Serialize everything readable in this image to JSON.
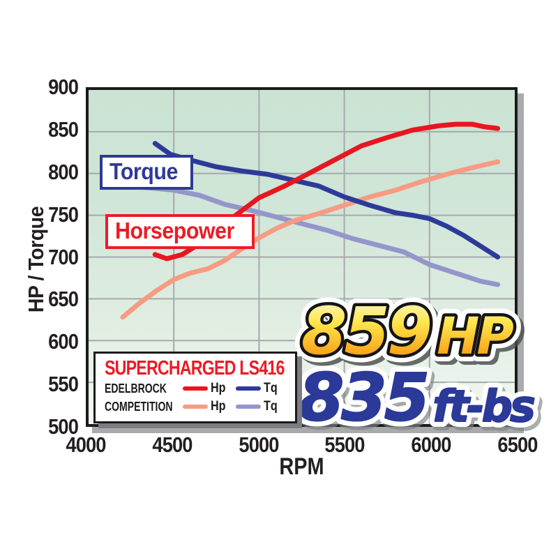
{
  "axes": {
    "y_label": "HP / Torque",
    "x_label": "RPM",
    "y_ticks": [
      900,
      850,
      800,
      750,
      700,
      650,
      600,
      550,
      500
    ],
    "x_ticks": [
      4000,
      4500,
      5000,
      5500,
      6000,
      6500
    ]
  },
  "plot_labels": {
    "torque": "Torque",
    "horsepower": "Horsepower"
  },
  "legend": {
    "title": "SUPERCHARGED LS416",
    "rows": [
      {
        "name": "EDELBROCK",
        "entries": [
          {
            "label": "Hp",
            "color": "#e8161f"
          },
          {
            "label": "Tq",
            "color": "#2e3a99"
          }
        ]
      },
      {
        "name": "COMPETITION",
        "entries": [
          {
            "label": "Hp",
            "color": "#f79b83"
          },
          {
            "label": "Tq",
            "color": "#9496cb"
          }
        ]
      }
    ]
  },
  "colors": {
    "edelbrock_hp": "#e8161f",
    "edelbrock_tq": "#2e3a99",
    "competition_hp": "#f79b83",
    "competition_tq": "#9496cb",
    "grid": "#a6a9ab",
    "plot_border": "#1b1b1b",
    "plot_bg_top": "#cbe3d4",
    "plot_bg_bottom": "#f3f8f3",
    "gold_top": "#fdf9e0",
    "gold_mid": "#ffe64c",
    "gold_bottom": "#f68d1e",
    "callout_blue": "#2b3a98",
    "label_red": "#ed1b24",
    "label_blue": "#2e3a96",
    "tick_text": "#231f20"
  },
  "chart_data": {
    "type": "line",
    "title": "SUPERCHARGED LS416",
    "xlabel": "RPM",
    "ylabel": "HP / Torque",
    "xlim": [
      4000,
      6500
    ],
    "ylim": [
      500,
      900
    ],
    "x_tick_step": 500,
    "y_tick_step": 50,
    "grid": true,
    "legend_position": "bottom-left",
    "series": [
      {
        "id": "edelbrock-hp",
        "name": "Edelbrock Hp",
        "color": "#e8161f",
        "x": [
          4390,
          4460,
          4550,
          4700,
          4850,
          5000,
          5150,
          5300,
          5450,
          5600,
          5750,
          5900,
          6050,
          6150,
          6250,
          6320,
          6400
        ],
        "y": [
          703,
          698,
          703,
          722,
          748,
          771,
          785,
          801,
          817,
          833,
          843,
          852,
          857,
          859,
          859,
          856,
          854
        ]
      },
      {
        "id": "edelbrock-tq",
        "name": "Edelbrock Tq",
        "color": "#2e3a99",
        "x": [
          4390,
          4480,
          4600,
          4750,
          4900,
          5050,
          5200,
          5350,
          5500,
          5650,
          5800,
          5900,
          6000,
          6100,
          6200,
          6300,
          6400
        ],
        "y": [
          836,
          823,
          816,
          808,
          803,
          799,
          792,
          785,
          772,
          762,
          753,
          750,
          746,
          737,
          726,
          713,
          700
        ]
      },
      {
        "id": "competition-hp",
        "name": "Competition Hp",
        "color": "#f79b83",
        "x": [
          4200,
          4300,
          4400,
          4500,
          4600,
          4700,
          4800,
          4900,
          5000,
          5100,
          5200,
          5350,
          5500,
          5650,
          5800,
          5950,
          6100,
          6250,
          6400
        ],
        "y": [
          628,
          645,
          660,
          673,
          681,
          686,
          696,
          710,
          723,
          734,
          743,
          752,
          762,
          772,
          780,
          790,
          799,
          807,
          814
        ]
      },
      {
        "id": "competition-tq",
        "name": "Competition Tq",
        "color": "#9496cb",
        "x": [
          4200,
          4350,
          4500,
          4650,
          4800,
          4950,
          5100,
          5250,
          5400,
          5550,
          5700,
          5850,
          6000,
          6150,
          6300,
          6400
        ],
        "y": [
          785,
          783,
          780,
          774,
          763,
          756,
          748,
          740,
          732,
          722,
          714,
          706,
          691,
          681,
          671,
          667
        ]
      }
    ],
    "annotations": [
      {
        "value": "859",
        "unit": "HP",
        "style": "gold"
      },
      {
        "value": "835",
        "unit": "ft-bs",
        "style": "blue"
      }
    ]
  }
}
